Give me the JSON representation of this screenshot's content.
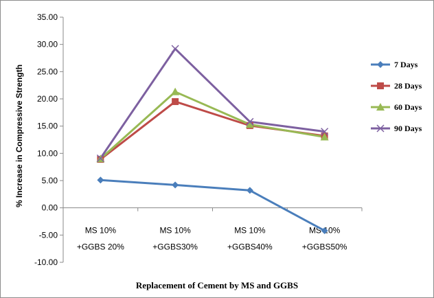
{
  "chart_data": {
    "type": "line",
    "title": "",
    "xlabel": "Replacement of Cement by MS and GGBS",
    "ylabel": "% Increase in Compressive Strength",
    "ylim": [
      -10,
      35
    ],
    "ytick_step": 5,
    "ytick_labels": [
      "35.00",
      "30.00",
      "25.00",
      "20.00",
      "15.00",
      "10.00",
      "5.00",
      "0.00",
      "-5.00",
      "-10.00"
    ],
    "grid": false,
    "legend_position": "right",
    "categories": [
      [
        "MS 10%",
        "+GGBS 20%"
      ],
      [
        "MS 10%",
        "+GGBS30%"
      ],
      [
        "MS 10%",
        "+GGBS40%"
      ],
      [
        "MS 10%",
        "+GGBS50%"
      ]
    ],
    "series": [
      {
        "name": "7 Days",
        "color": "#4a7ebb",
        "marker": "diamond",
        "values": [
          5.1,
          4.2,
          3.2,
          -4.2
        ]
      },
      {
        "name": "28 Days",
        "color": "#be4b48",
        "marker": "square",
        "values": [
          8.9,
          19.5,
          15.1,
          13.2
        ]
      },
      {
        "name": "60 Days",
        "color": "#98b954",
        "marker": "triangle",
        "values": [
          9.0,
          21.3,
          15.3,
          13.0
        ]
      },
      {
        "name": "90 Days",
        "color": "#7d60a0",
        "marker": "x",
        "values": [
          9.1,
          29.2,
          15.8,
          14.0
        ]
      }
    ]
  }
}
